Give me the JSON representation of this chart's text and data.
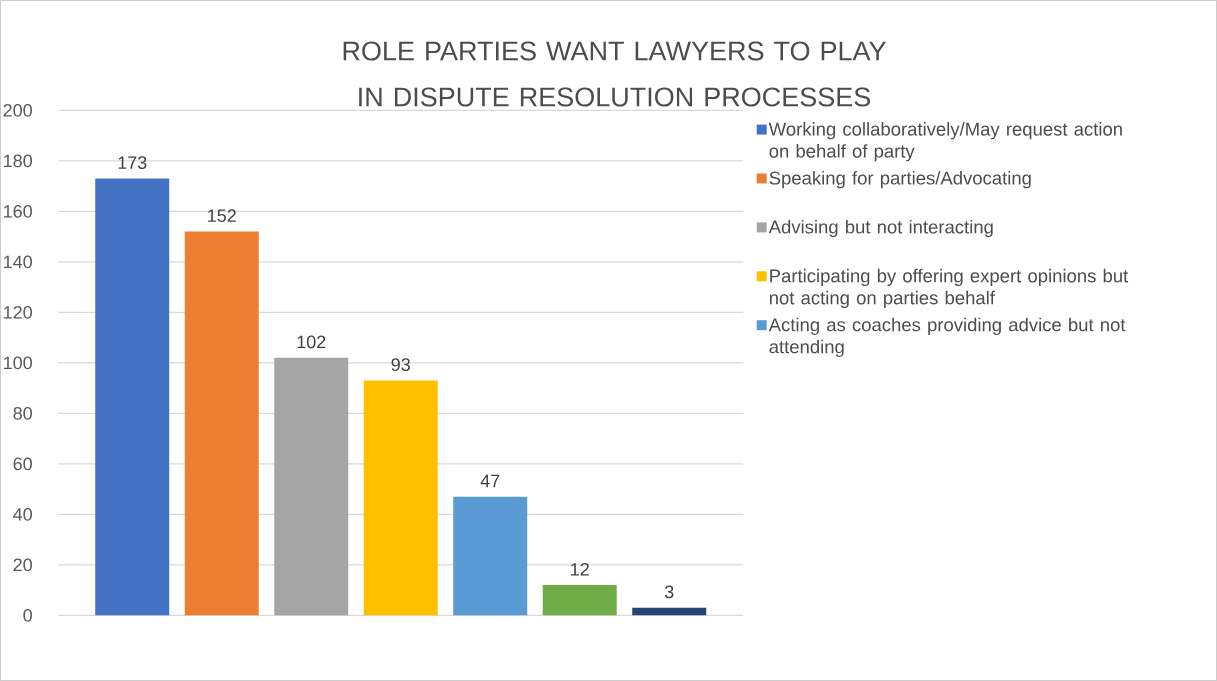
{
  "chart_data": {
    "type": "bar",
    "title": "ROLE PARTIES WANT LAWYERS TO PLAY IN DISPUTE RESOLUTION PROCESSES",
    "categories": [
      null
    ],
    "series": [
      {
        "name": "Working collaboratively/May request action on behalf of party",
        "color": "#4472c4",
        "values": [
          173
        ]
      },
      {
        "name": "Speaking for parties/Advocating",
        "color": "#ed7d31",
        "values": [
          152
        ]
      },
      {
        "name": "Advising but not interacting",
        "color": "#a5a5a5",
        "values": [
          102
        ]
      },
      {
        "name": "Participating by offering expert opinions but not acting on parties behalf",
        "color": "#ffc000",
        "values": [
          93
        ]
      },
      {
        "name": "Acting as coaches providing advice but not attending",
        "color": "#5b9bd5",
        "values": [
          47
        ]
      },
      {
        "color": "#70ad47",
        "values": [
          12
        ]
      },
      {
        "color": "#264478",
        "values": [
          3
        ]
      }
    ],
    "ylim": [
      0,
      200
    ],
    "yticks": [
      0,
      20,
      40,
      60,
      80,
      100,
      120,
      140,
      160,
      180,
      200
    ],
    "grid": "y",
    "legend": "right",
    "data_labels": true
  }
}
